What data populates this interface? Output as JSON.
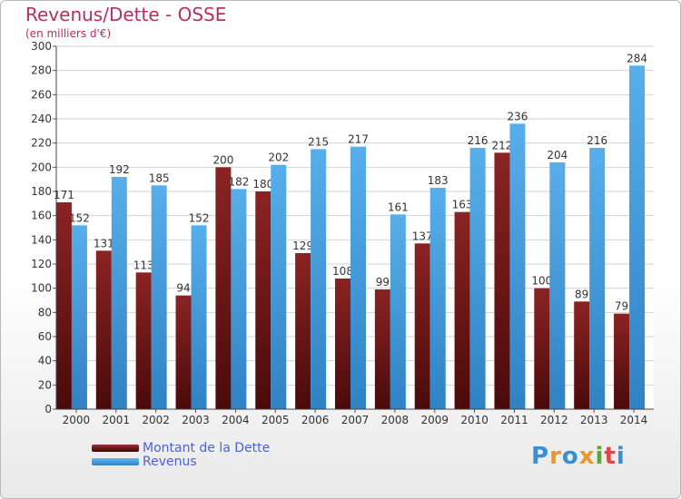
{
  "header": {
    "title": "Revenus/Dette - OSSE",
    "subtitle": "(en milliers d'€)"
  },
  "logo": {
    "text": "Proxiti",
    "letter_colors": [
      "#3a8fd1",
      "#e8962e",
      "#3a8fd1",
      "#e8962e",
      "#5aa832",
      "#e04848",
      "#3a8fd1"
    ]
  },
  "chart_data": {
    "type": "bar",
    "categories": [
      "2000",
      "2001",
      "2002",
      "2003",
      "2004",
      "2005",
      "2006",
      "2007",
      "2008",
      "2009",
      "2010",
      "2011",
      "2012",
      "2013",
      "2014"
    ],
    "series": [
      {
        "name": "Montant de la Dette",
        "color": "#8b2323",
        "values": [
          171,
          131,
          113,
          94,
          200,
          180,
          129,
          108,
          99,
          137,
          163,
          212,
          100,
          89,
          79
        ]
      },
      {
        "name": "Revenus",
        "color": "#4ea3e3",
        "values": [
          152,
          192,
          185,
          152,
          182,
          202,
          215,
          217,
          161,
          183,
          216,
          236,
          204,
          216,
          284
        ]
      }
    ],
    "title": "Revenus/Dette - OSSE",
    "ylabel": "(en milliers d'€)",
    "ylim": [
      0,
      300
    ],
    "yticks": [
      0,
      20,
      40,
      60,
      80,
      100,
      120,
      140,
      160,
      180,
      200,
      220,
      240,
      260,
      280,
      300
    ],
    "grid": true,
    "legend_position": "bottom-left"
  }
}
